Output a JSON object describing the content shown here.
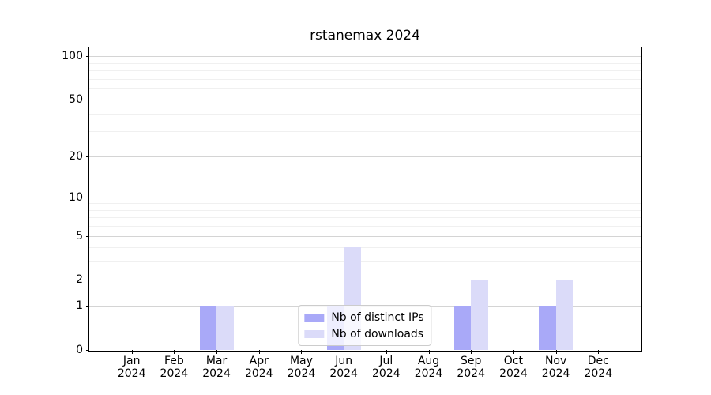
{
  "chart_data": {
    "type": "bar",
    "title": "rstanemax 2024",
    "categories": [
      "Jan 2024",
      "Feb 2024",
      "Mar 2024",
      "Apr 2024",
      "May 2024",
      "Jun 2024",
      "Jul 2024",
      "Aug 2024",
      "Sep 2024",
      "Oct 2024",
      "Nov 2024",
      "Dec 2024"
    ],
    "months": [
      "Jan",
      "Feb",
      "Mar",
      "Apr",
      "May",
      "Jun",
      "Jul",
      "Aug",
      "Sep",
      "Oct",
      "Nov",
      "Dec"
    ],
    "year": "2024",
    "series": [
      {
        "name": "Nb of distinct IPs",
        "color": "#a9a9f8",
        "values": [
          0,
          0,
          1,
          0,
          0,
          1,
          0,
          0,
          1,
          0,
          1,
          0
        ]
      },
      {
        "name": "Nb of downloads",
        "color": "#dbdbf9",
        "values": [
          0,
          0,
          1,
          0,
          0,
          4,
          0,
          0,
          2,
          0,
          2,
          0
        ]
      }
    ],
    "xlabel": "",
    "ylabel": "",
    "y_axis": {
      "scale": "log1p",
      "major_ticks": [
        0,
        1,
        2,
        5,
        10,
        20,
        50,
        100
      ],
      "minor_ticks": [
        3,
        4,
        6,
        7,
        8,
        9,
        30,
        40,
        60,
        70,
        80,
        90
      ],
      "ylim": [
        0,
        115
      ]
    },
    "grid": true,
    "legend_position": "lower center",
    "style": {
      "grid_major_color": "#d4d4d4",
      "grid_minor_color": "#f0f0f0",
      "axis_color": "#000000",
      "background_color": "#ffffff"
    }
  }
}
